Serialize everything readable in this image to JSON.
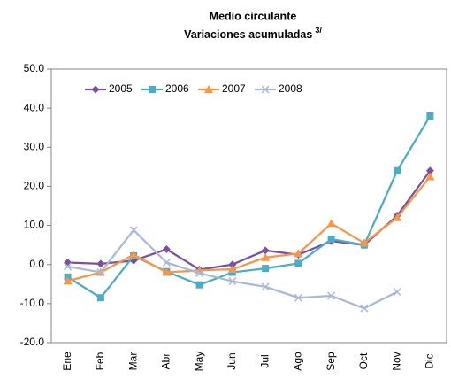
{
  "chart_data": {
    "type": "line",
    "title": "Medio circulante",
    "subtitle": "Variaciones acumuladas",
    "subtitle_note": "3/",
    "categories": [
      "Ene",
      "Feb",
      "Mar",
      "Abr",
      "May",
      "Jun",
      "Jul",
      "Ago",
      "Sep",
      "Oct",
      "Nov",
      "Dic"
    ],
    "series": [
      {
        "name": "2005",
        "color": "#7b509e",
        "marker": "diamond",
        "values": [
          0.5,
          0.2,
          1.0,
          3.9,
          -1.3,
          0.0,
          3.6,
          2.5,
          6.0,
          5.0,
          12.5,
          24.0
        ]
      },
      {
        "name": "2006",
        "color": "#4bacc6",
        "marker": "square",
        "values": [
          -3.2,
          -8.5,
          2.2,
          -1.8,
          -5.2,
          -2.0,
          -1.0,
          0.3,
          6.5,
          5.0,
          24.0,
          38.0
        ]
      },
      {
        "name": "2007",
        "color": "#f79646",
        "marker": "triangle",
        "values": [
          -4.2,
          -2.0,
          2.5,
          -2.0,
          -1.5,
          -1.2,
          1.8,
          2.8,
          10.5,
          5.5,
          12.0,
          22.5
        ]
      },
      {
        "name": "2008",
        "color": "#a9b7d8",
        "marker": "x",
        "values": [
          -0.5,
          -2.0,
          8.8,
          0.5,
          -2.2,
          -4.3,
          -5.7,
          -8.5,
          -8.0,
          -11.2,
          -7.0,
          null
        ]
      }
    ],
    "ylim": [
      -20,
      50
    ],
    "yticks": [
      {
        "value": -20,
        "label": "-20.0"
      },
      {
        "value": -10,
        "label": "-10.0"
      },
      {
        "value": 0,
        "label": "0.0"
      },
      {
        "value": 10,
        "label": "10.0"
      },
      {
        "value": 20,
        "label": "20.0"
      },
      {
        "value": 30,
        "label": "30.0"
      },
      {
        "value": 40,
        "label": "40.0"
      },
      {
        "value": 50,
        "label": "50.0"
      }
    ],
    "grid": false,
    "legend": "top-left"
  }
}
